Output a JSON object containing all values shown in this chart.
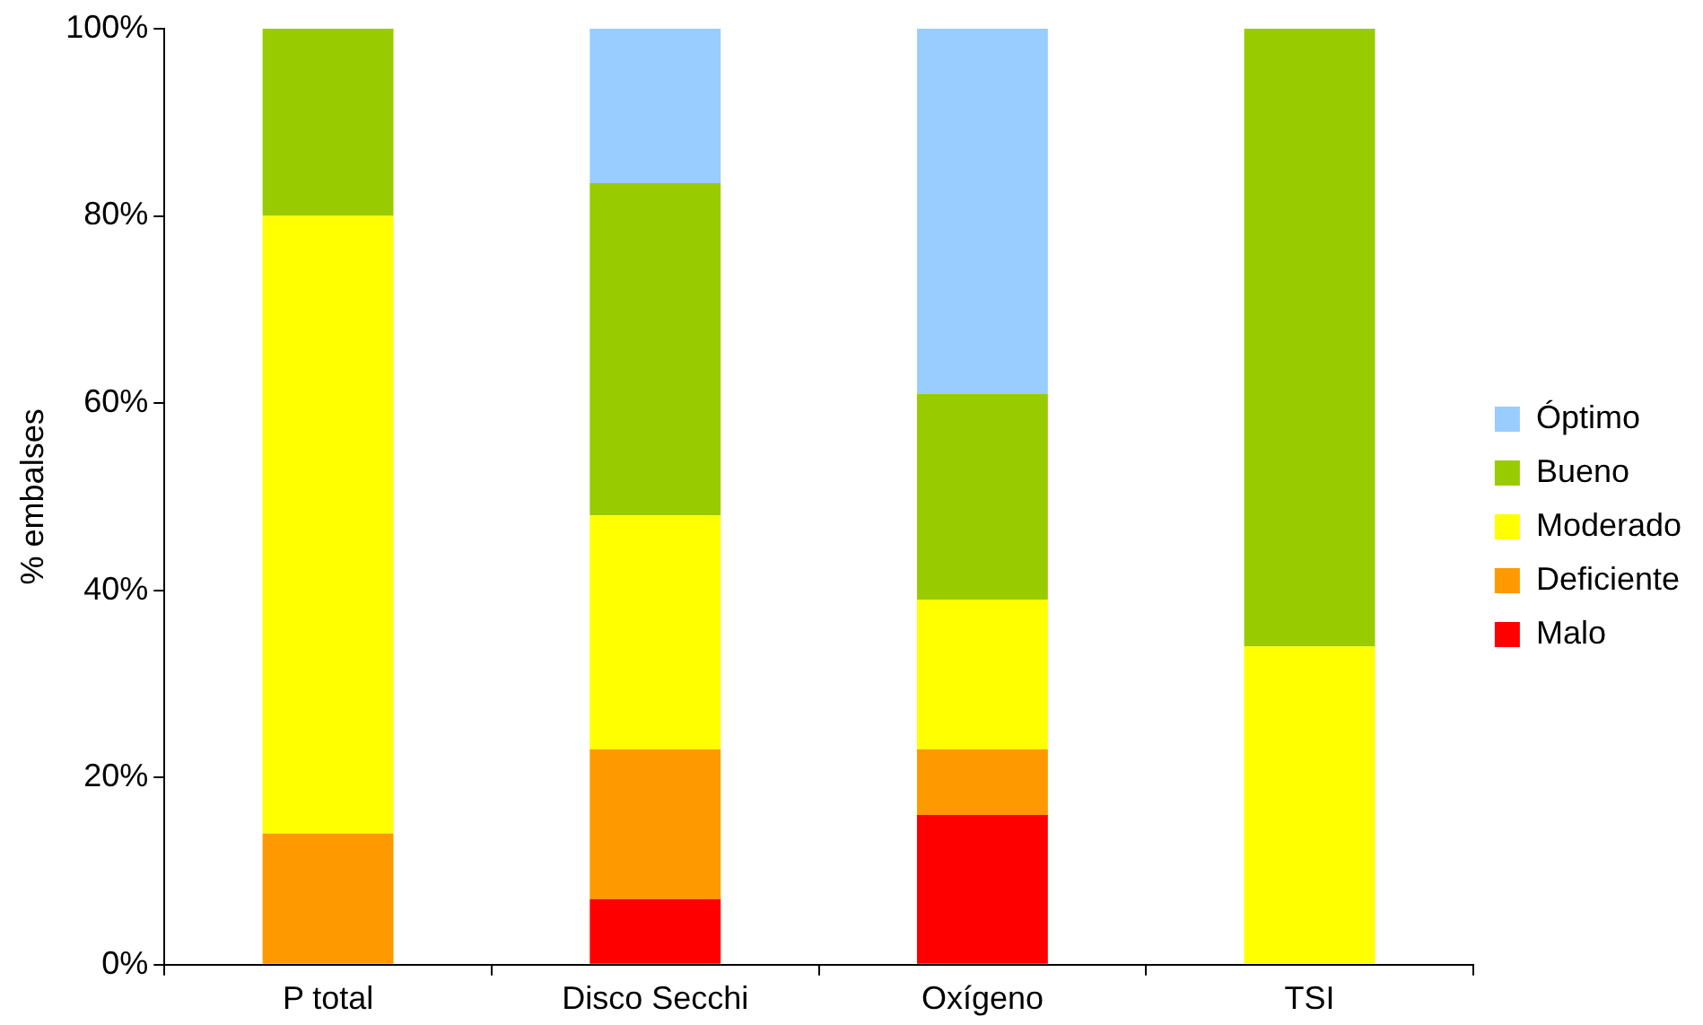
{
  "chart_data": {
    "type": "bar",
    "stacked": true,
    "ylabel": "% embalses",
    "categories": [
      "P total",
      "Disco Secchi",
      "Oxígeno",
      "TSI"
    ],
    "series": [
      {
        "name": "Malo",
        "color": "#ff0000",
        "values": [
          0,
          7,
          16,
          0
        ]
      },
      {
        "name": "Deficiente",
        "color": "#ff9900",
        "values": [
          14,
          16,
          7,
          0
        ]
      },
      {
        "name": "Moderado",
        "color": "#ffff00",
        "values": [
          66,
          25,
          16,
          34
        ]
      },
      {
        "name": "Bueno",
        "color": "#99cc00",
        "values": [
          20,
          35.5,
          22,
          66
        ]
      },
      {
        "name": "Óptimo",
        "color": "#99ccff",
        "values": [
          0,
          16.5,
          39,
          0
        ]
      }
    ],
    "ylim": [
      0,
      100
    ],
    "yticks": [
      {
        "value": 0,
        "label": "0%"
      },
      {
        "value": 20,
        "label": "20%"
      },
      {
        "value": 40,
        "label": "40%"
      },
      {
        "value": 60,
        "label": "60%"
      },
      {
        "value": 80,
        "label": "80%"
      },
      {
        "value": 100,
        "label": "100%"
      }
    ],
    "grid": false,
    "legend": "right"
  }
}
